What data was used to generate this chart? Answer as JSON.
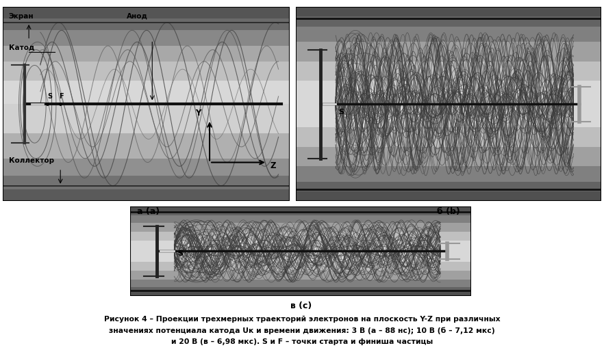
{
  "fig_width": 8.82,
  "fig_height": 5.12,
  "bg_color": "#ffffff",
  "caption_a": "а (a)",
  "caption_b": "б (b)",
  "caption_c": "в (c)",
  "label_ekran": "Экран",
  "label_anod": "Анод",
  "label_katod": "Катод",
  "label_koll": "Коллектор",
  "label_S": "S",
  "label_F": "F",
  "label_Y": "Y",
  "label_Z": "Z",
  "caption_text_line1": "Рисунок 4 – Проекции трехмерных траекторий электронов на плоскость Y-Z при различных",
  "caption_text_line2": "значениях потенциала катода Uк и времени движения: 3 В (а – 88 нс); 10 В (б – 7,12 мкс)",
  "caption_text_line3": "и 20 В (в – 6,98 мкс). S и F – точки старта и финиша частицы"
}
